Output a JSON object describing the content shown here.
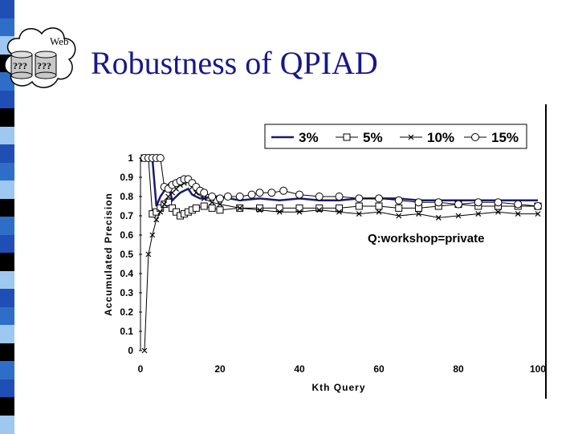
{
  "slide": {
    "title": "Robustness of QPIAD",
    "logo": {
      "label": "Web",
      "db_labels": [
        "???",
        "???"
      ],
      "icon": "web-cloud-database-icon"
    },
    "stripe_colors": [
      "#1f4fb5",
      "#5d9ed8",
      "#000000",
      "#e6e6bf",
      "#2e6ec9",
      "#0f0f0f",
      "#9ec8f0",
      "#4a7aa0"
    ],
    "accent_color": "#17178c"
  },
  "chart_data": {
    "type": "line",
    "xlabel": "Kth Query",
    "ylabel": "Accumulated Precision",
    "xlim": [
      0,
      100
    ],
    "ylim": [
      0,
      1
    ],
    "x_ticks": [
      "0",
      "20",
      "40",
      "60",
      "80",
      "100"
    ],
    "y_ticks": [
      "0",
      "0.1",
      "0.2",
      "0.3",
      "0.4",
      "0.5",
      "0.6",
      "0.7",
      "0.8",
      "0.9",
      "1"
    ],
    "annotation": "Q:workshop=private",
    "legend_position": "top",
    "grid": false,
    "series": [
      {
        "name": "3%",
        "marker": "none",
        "color": "#1a1a70",
        "points": [
          [
            1,
            1
          ],
          [
            2,
            1
          ],
          [
            3,
            1
          ],
          [
            4,
            0.75
          ],
          [
            5,
            0.8
          ],
          [
            6,
            0.83
          ],
          [
            7,
            0.86
          ],
          [
            8,
            0.78
          ],
          [
            9,
            0.8
          ],
          [
            10,
            0.82
          ],
          [
            11,
            0.83
          ],
          [
            12,
            0.84
          ],
          [
            13,
            0.81
          ],
          [
            14,
            0.8
          ],
          [
            15,
            0.79
          ],
          [
            16,
            0.79
          ],
          [
            18,
            0.8
          ],
          [
            20,
            0.8
          ],
          [
            25,
            0.78
          ],
          [
            30,
            0.79
          ],
          [
            35,
            0.78
          ],
          [
            40,
            0.79
          ],
          [
            45,
            0.78
          ],
          [
            50,
            0.78
          ],
          [
            55,
            0.79
          ],
          [
            60,
            0.79
          ],
          [
            65,
            0.79
          ],
          [
            70,
            0.78
          ],
          [
            75,
            0.78
          ],
          [
            80,
            0.78
          ],
          [
            85,
            0.78
          ],
          [
            90,
            0.78
          ],
          [
            95,
            0.78
          ],
          [
            100,
            0.78
          ]
        ]
      },
      {
        "name": "5%",
        "marker": "square",
        "color": "#000000",
        "points": [
          [
            1,
            1
          ],
          [
            2,
            1
          ],
          [
            3,
            0.71
          ],
          [
            4,
            0.72
          ],
          [
            5,
            0.74
          ],
          [
            6,
            0.76
          ],
          [
            7,
            0.77
          ],
          [
            8,
            0.74
          ],
          [
            9,
            0.72
          ],
          [
            10,
            0.7
          ],
          [
            11,
            0.71
          ],
          [
            12,
            0.72
          ],
          [
            13,
            0.73
          ],
          [
            14,
            0.74
          ],
          [
            16,
            0.75
          ],
          [
            18,
            0.74
          ],
          [
            20,
            0.73
          ],
          [
            25,
            0.74
          ],
          [
            30,
            0.74
          ],
          [
            35,
            0.74
          ],
          [
            40,
            0.74
          ],
          [
            45,
            0.74
          ],
          [
            50,
            0.74
          ],
          [
            55,
            0.75
          ],
          [
            60,
            0.75
          ],
          [
            65,
            0.74
          ],
          [
            70,
            0.74
          ],
          [
            75,
            0.75
          ],
          [
            80,
            0.76
          ],
          [
            85,
            0.75
          ],
          [
            90,
            0.75
          ],
          [
            95,
            0.75
          ],
          [
            100,
            0.75
          ]
        ]
      },
      {
        "name": "10%",
        "marker": "cross",
        "color": "#000000",
        "points": [
          [
            1,
            0
          ],
          [
            2,
            0.5
          ],
          [
            3,
            0.6
          ],
          [
            4,
            0.68
          ],
          [
            5,
            0.72
          ],
          [
            6,
            0.76
          ],
          [
            7,
            0.8
          ],
          [
            8,
            0.82
          ],
          [
            9,
            0.84
          ],
          [
            10,
            0.86
          ],
          [
            11,
            0.87
          ],
          [
            12,
            0.88
          ],
          [
            13,
            0.85
          ],
          [
            14,
            0.82
          ],
          [
            16,
            0.79
          ],
          [
            18,
            0.77
          ],
          [
            20,
            0.76
          ],
          [
            25,
            0.74
          ],
          [
            30,
            0.73
          ],
          [
            35,
            0.72
          ],
          [
            40,
            0.72
          ],
          [
            45,
            0.73
          ],
          [
            50,
            0.72
          ],
          [
            55,
            0.71
          ],
          [
            60,
            0.72
          ],
          [
            65,
            0.7
          ],
          [
            70,
            0.71
          ],
          [
            75,
            0.69
          ],
          [
            80,
            0.7
          ],
          [
            85,
            0.71
          ],
          [
            90,
            0.72
          ],
          [
            95,
            0.71
          ],
          [
            100,
            0.71
          ]
        ]
      },
      {
        "name": "15%",
        "marker": "circle",
        "color": "#000000",
        "points": [
          [
            1,
            1
          ],
          [
            2,
            1
          ],
          [
            3,
            1
          ],
          [
            4,
            1
          ],
          [
            5,
            1
          ],
          [
            6,
            0.85
          ],
          [
            7,
            0.84
          ],
          [
            8,
            0.86
          ],
          [
            9,
            0.87
          ],
          [
            10,
            0.88
          ],
          [
            11,
            0.89
          ],
          [
            12,
            0.89
          ],
          [
            13,
            0.87
          ],
          [
            14,
            0.85
          ],
          [
            15,
            0.83
          ],
          [
            16,
            0.82
          ],
          [
            18,
            0.8
          ],
          [
            20,
            0.79
          ],
          [
            22,
            0.8
          ],
          [
            25,
            0.8
          ],
          [
            28,
            0.81
          ],
          [
            30,
            0.82
          ],
          [
            33,
            0.82
          ],
          [
            36,
            0.83
          ],
          [
            40,
            0.81
          ],
          [
            45,
            0.8
          ],
          [
            50,
            0.8
          ],
          [
            55,
            0.79
          ],
          [
            60,
            0.79
          ],
          [
            65,
            0.78
          ],
          [
            70,
            0.77
          ],
          [
            75,
            0.77
          ],
          [
            80,
            0.76
          ],
          [
            85,
            0.77
          ],
          [
            90,
            0.77
          ],
          [
            95,
            0.76
          ],
          [
            100,
            0.75
          ]
        ]
      }
    ]
  }
}
